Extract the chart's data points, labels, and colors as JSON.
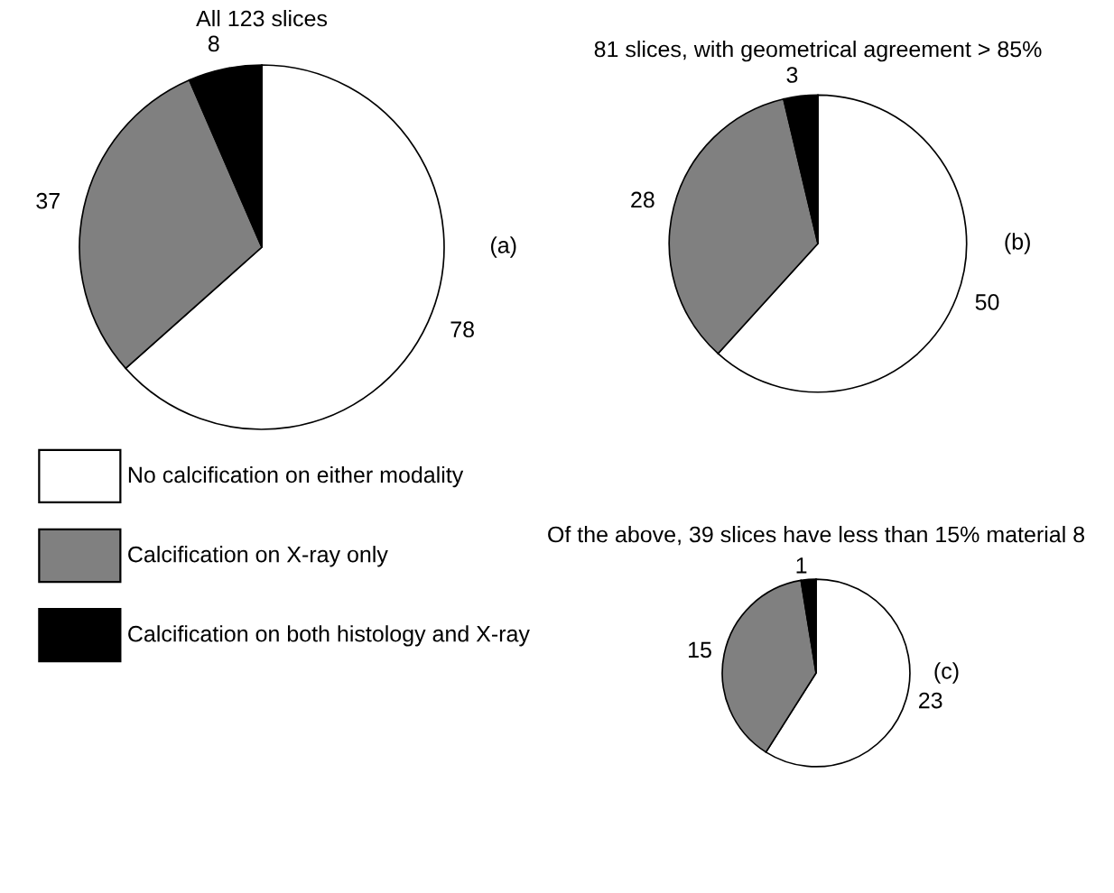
{
  "chart_data": [
    {
      "type": "pie",
      "title": "All 123 slices",
      "categories": [
        "No calcification on either modality",
        "Calcification on X-ray only",
        "Calcification on both histology and X-ray"
      ],
      "values": [
        78,
        37,
        8
      ],
      "colors": [
        "#ffffff",
        "#808080",
        "#000000"
      ],
      "data_labels": true,
      "annotations": [
        "(a)"
      ],
      "legend": "bottom"
    },
    {
      "type": "pie",
      "title": "81 slices, with geometrical agreement > 85%",
      "categories": [
        null,
        null,
        null
      ],
      "values": [
        50,
        28,
        3
      ],
      "colors": [
        "#ffffff",
        "#808080",
        "#000000"
      ],
      "data_labels": true,
      "annotations": [
        "(b)"
      ]
    },
    {
      "type": "pie",
      "title": "Of the above, 39 slices have less than 15% material 8",
      "categories": [
        null,
        null,
        null
      ],
      "values": [
        23,
        15,
        1
      ],
      "colors": [
        "#ffffff",
        "#808080",
        "#000000"
      ],
      "data_labels": true,
      "annotations": [
        "(c)"
      ]
    }
  ]
}
